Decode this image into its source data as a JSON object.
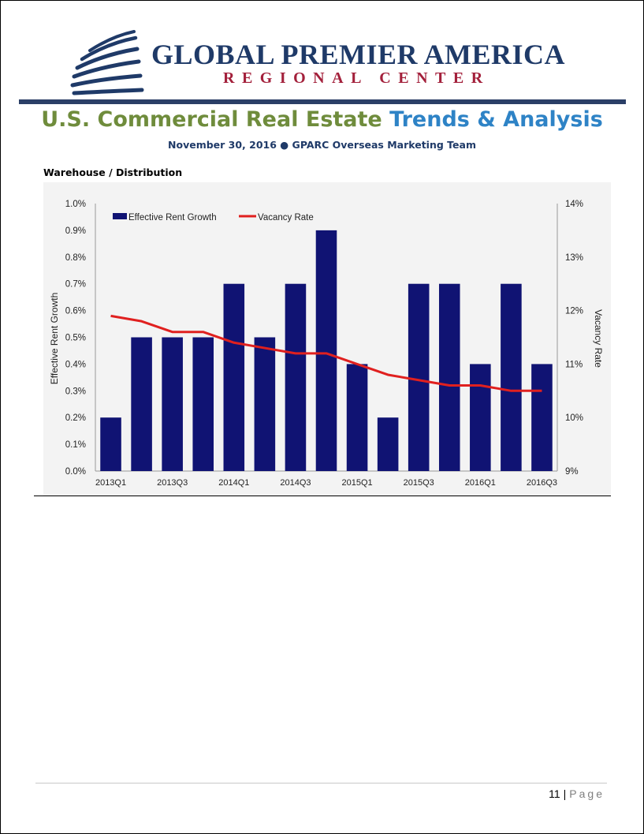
{
  "header": {
    "logo_line1": "GLOBAL PREMIER AMERICA",
    "logo_line2": "REGIONAL CENTER",
    "title_part1": "U.S. Commercial Real Estate",
    "title_part2": "Trends & Analysis",
    "subtitle": "November 30, 2016 ● GPARC Overseas Marketing Team"
  },
  "section": {
    "label": "Warehouse / Distribution"
  },
  "colors": {
    "bar": "#101373",
    "line": "#e0201f",
    "title_green": "#6f8c3c",
    "title_blue": "#2e83c6",
    "navy": "#1f3a68"
  },
  "chart_data": {
    "type": "bar",
    "categories": [
      "2013Q1",
      "2013Q2",
      "2013Q3",
      "2013Q4",
      "2014Q1",
      "2014Q2",
      "2014Q3",
      "2014Q4",
      "2015Q1",
      "2015Q2",
      "2015Q3",
      "2015Q4",
      "2016Q1",
      "2016Q2",
      "2016Q3"
    ],
    "x_tick_labels": [
      "2013Q1",
      "2013Q3",
      "2014Q1",
      "2014Q3",
      "2015Q1",
      "2015Q3",
      "2016Q1",
      "2016Q3"
    ],
    "series": [
      {
        "name": "Effective Rent Growth",
        "kind": "bar",
        "axis": "left",
        "values": [
          0.2,
          0.5,
          0.5,
          0.5,
          0.7,
          0.5,
          0.7,
          0.9,
          0.4,
          0.2,
          0.7,
          0.7,
          0.4,
          0.7,
          0.4
        ]
      },
      {
        "name": "Vacancy Rate",
        "kind": "line",
        "axis": "right",
        "values": [
          11.9,
          11.8,
          11.6,
          11.6,
          11.4,
          11.3,
          11.2,
          11.2,
          11.0,
          10.8,
          10.7,
          10.6,
          10.6,
          10.5,
          10.5
        ]
      }
    ],
    "ylabel": "Effective Rent Growth",
    "ylabel_right": "Vacancy Rate",
    "ylim": [
      0,
      1.0
    ],
    "ylim_right": [
      9,
      14
    ],
    "y_ticks": [
      "0.0%",
      "0.1%",
      "0.2%",
      "0.3%",
      "0.4%",
      "0.5%",
      "0.6%",
      "0.7%",
      "0.8%",
      "0.9%",
      "1.0%"
    ],
    "y_ticks_right": [
      "9%",
      "10%",
      "11%",
      "12%",
      "13%",
      "14%"
    ],
    "legend": "top-left",
    "grid": false
  },
  "footer": {
    "page_number": "11",
    "separator": "|",
    "page_label": "Page"
  }
}
